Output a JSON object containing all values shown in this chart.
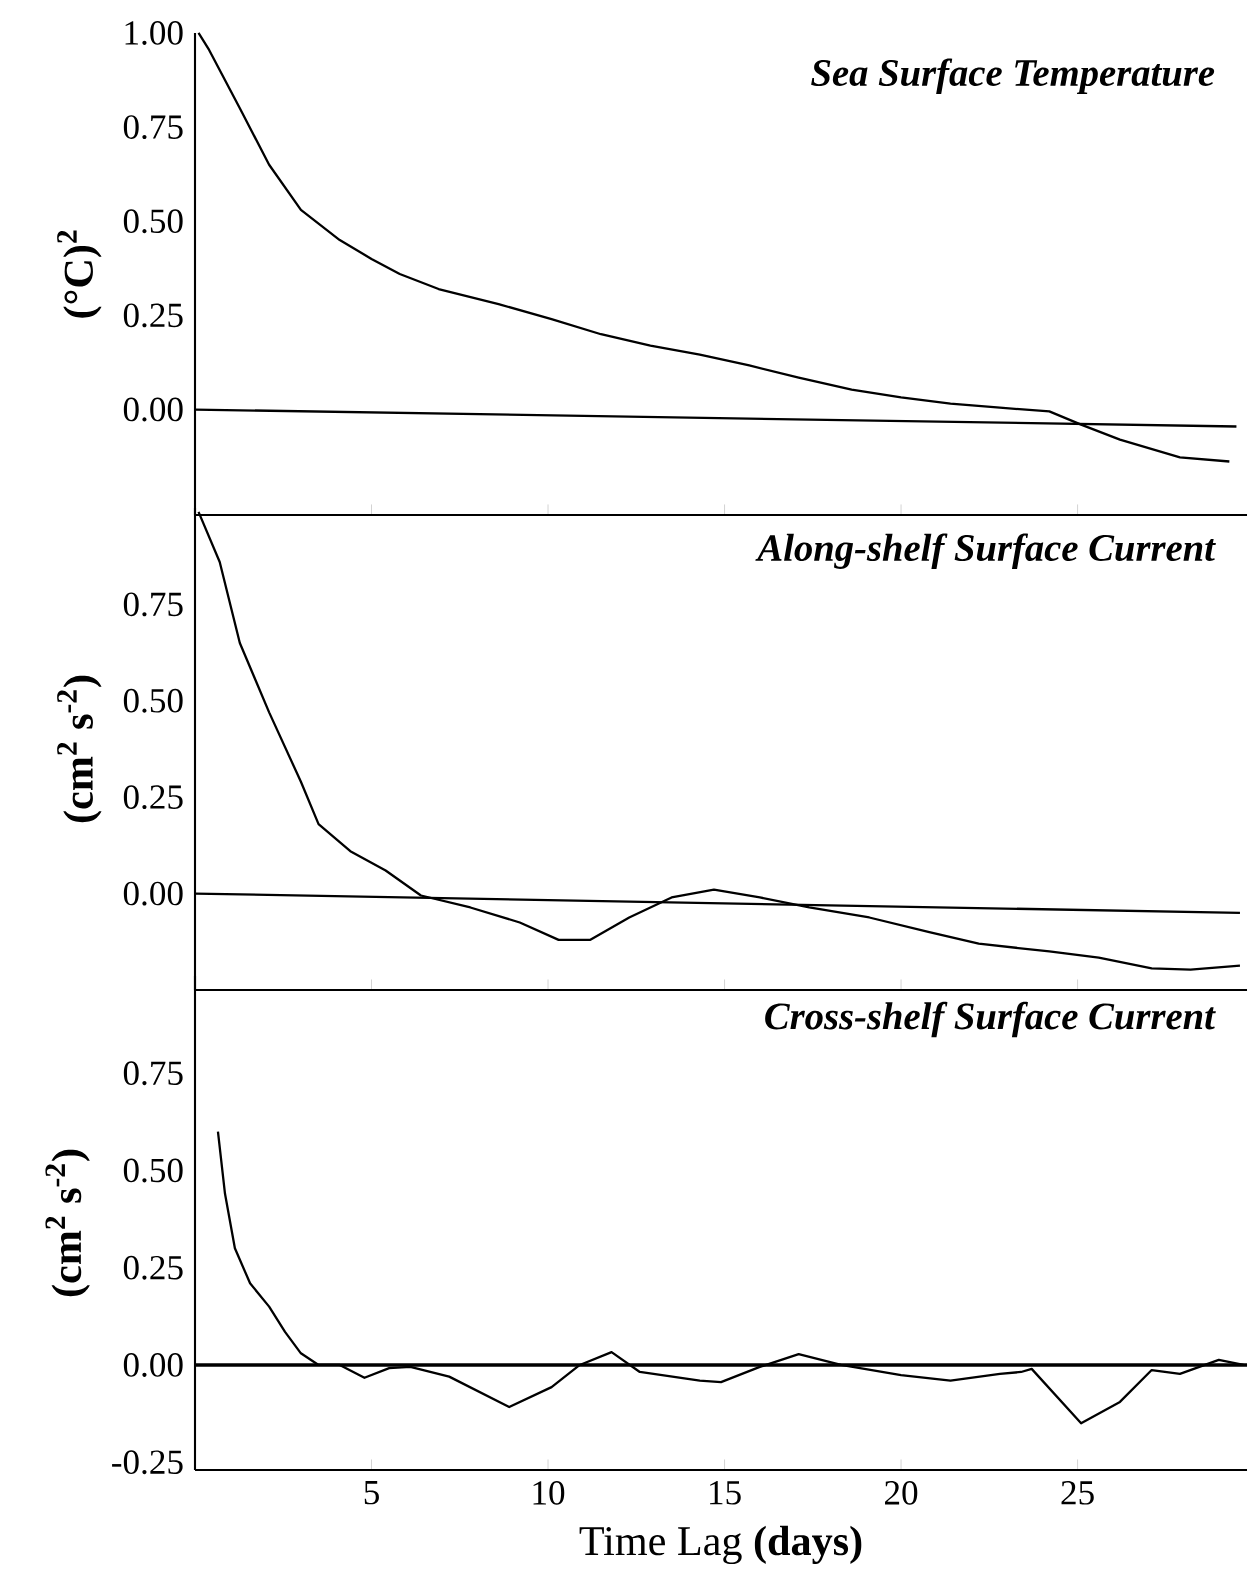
{
  "chart_data": [
    {
      "type": "line",
      "title": "Sea Surface Temperature",
      "ylabel": "(°C)$^{2}$",
      "xlim": [
        0,
        29.8
      ],
      "ylim": [
        -0.28,
        1.0
      ],
      "xticks": [
        5,
        10,
        15,
        20,
        25
      ],
      "yticks": [
        {
          "value": 0,
          "label": "0.00"
        },
        {
          "value": 0.25,
          "label": "0.25"
        },
        {
          "value": 0.5,
          "label": "0.50"
        },
        {
          "value": 0.75,
          "label": "0.75"
        },
        {
          "value": 1.0,
          "label": "1.00"
        }
      ],
      "tick_labels": "y",
      "series": [
        {
          "color": "#000000",
          "x": [
            0.1,
            0.4,
            1.27,
            2.1,
            3.0,
            4.1,
            5.0,
            5.8,
            6.9,
            8.6,
            10.1,
            11.5,
            12.9,
            14.3,
            15.7,
            17.1,
            18.6,
            20.0,
            21.4,
            22.8,
            24.2,
            25.1,
            26.2,
            27.9,
            29.3
          ],
          "values": [
            1.0,
            0.955,
            0.8,
            0.65,
            0.53,
            0.45,
            0.4,
            0.36,
            0.32,
            0.28,
            0.24,
            0.2,
            0.17,
            0.146,
            0.117,
            0.085,
            0.053,
            0.032,
            0.016,
            0.005,
            -0.005,
            -0.04,
            -0.08,
            -0.127,
            -0.138
          ]
        },
        {
          "color": "#000000",
          "x": [
            0,
            29.5
          ],
          "values": [
            0,
            -0.045
          ]
        }
      ]
    },
    {
      "type": "line",
      "title": "Along-shelf Surface Current",
      "ylabel": "(cm$^{2}$ s$^{-2}$)",
      "xlim": [
        0,
        29.8
      ],
      "ylim": [
        -0.25,
        1.0
      ],
      "xticks": [
        5,
        10,
        15,
        20,
        25
      ],
      "yticks": [
        {
          "value": 0,
          "label": "0.00"
        },
        {
          "value": 0.25,
          "label": "0.25"
        },
        {
          "value": 0.5,
          "label": "0.50"
        },
        {
          "value": 0.75,
          "label": "0.75"
        }
      ],
      "tick_labels": "y",
      "series": [
        {
          "color": "#000000",
          "x": [
            0.1,
            0.7,
            1.27,
            2.1,
            3.0,
            3.5,
            4.4,
            5.4,
            6.4,
            7.8,
            9.2,
            10.3,
            11.2,
            12.3,
            13.5,
            14.7,
            16.0,
            17.4,
            19.1,
            20.8,
            22.2,
            24.2,
            25.6,
            27.1,
            28.2,
            29.6
          ],
          "values": [
            0.99,
            0.86,
            0.65,
            0.47,
            0.29,
            0.18,
            0.11,
            0.06,
            -0.005,
            -0.036,
            -0.075,
            -0.12,
            -0.12,
            -0.062,
            -0.01,
            0.01,
            -0.01,
            -0.036,
            -0.062,
            -0.1,
            -0.13,
            -0.15,
            -0.166,
            -0.194,
            -0.197,
            -0.187
          ]
        },
        {
          "color": "#000000",
          "x": [
            0,
            29.6
          ],
          "values": [
            0,
            -0.05
          ]
        }
      ]
    },
    {
      "type": "line",
      "title": "Cross-shelf Surface Current",
      "ylabel": "(cm$^{2}$ s$^{-2}$)",
      "xlabel": "Time Lag **(days)**",
      "xlim": [
        0,
        29.8
      ],
      "ylim": [
        -0.27,
        1.0
      ],
      "xticks": [
        5,
        10,
        15,
        20,
        25
      ],
      "yticks": [
        {
          "value": -0.25,
          "label": "-0.25"
        },
        {
          "value": 0,
          "label": "0.00"
        },
        {
          "value": 0.25,
          "label": "0.25"
        },
        {
          "value": 0.5,
          "label": "0.50"
        },
        {
          "value": 0.75,
          "label": "0.75"
        }
      ],
      "ref_lines": [
        {
          "axis": "y",
          "value": 0
        }
      ],
      "series": [
        {
          "color": "#000000",
          "x": [
            0.65,
            0.85,
            1.13,
            1.56,
            2.1,
            2.55,
            3.0,
            3.5,
            4.1,
            4.8,
            5.5,
            6.1,
            7.2,
            8.9,
            10.1,
            10.9,
            11.8,
            12.6,
            14.3,
            14.9,
            16.0,
            17.1,
            18.3,
            20.0,
            21.4,
            22.8,
            23.4,
            23.7,
            25.1,
            26.2,
            27.1,
            27.9,
            29.0,
            29.7
          ],
          "values": [
            0.6,
            0.44,
            0.3,
            0.21,
            0.15,
            0.085,
            0.03,
            0.0,
            0.0,
            -0.033,
            -0.008,
            -0.005,
            -0.03,
            -0.108,
            -0.057,
            0.0,
            0.033,
            -0.018,
            -0.04,
            -0.044,
            -0.005,
            0.028,
            0.0,
            -0.026,
            -0.04,
            -0.023,
            -0.018,
            -0.01,
            -0.15,
            -0.095,
            -0.013,
            -0.023,
            0.013,
            0.0
          ]
        }
      ]
    }
  ]
}
